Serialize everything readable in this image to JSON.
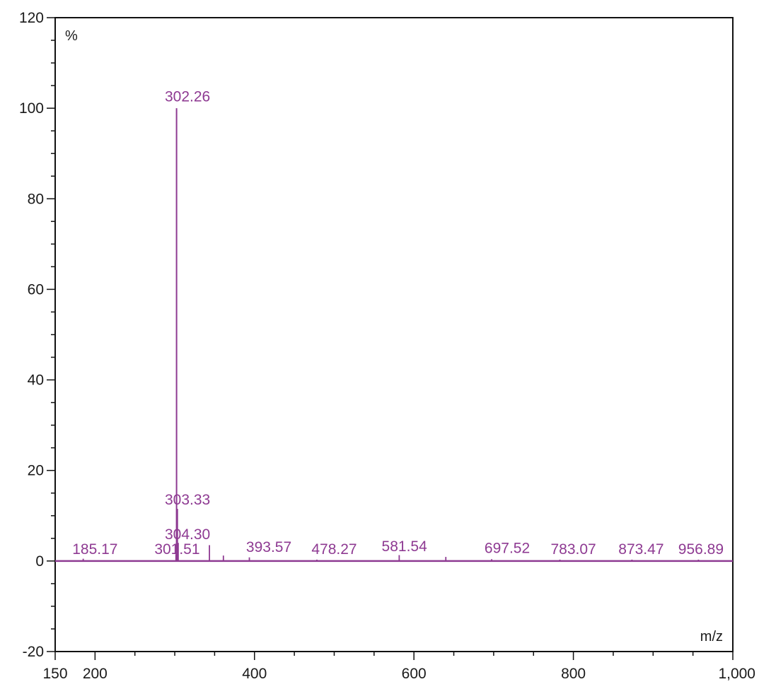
{
  "chart_data": {
    "type": "bar",
    "title": "",
    "xlabel": "m/z",
    "ylabel": "%",
    "xlim": [
      150,
      1000
    ],
    "ylim": [
      -20,
      120
    ],
    "grid": false,
    "x_ticks": [
      {
        "value": 150,
        "label": "150"
      },
      {
        "value": 200,
        "label": "200"
      },
      {
        "value": 400,
        "label": "400"
      },
      {
        "value": 600,
        "label": "600"
      },
      {
        "value": 800,
        "label": "800"
      },
      {
        "value": 1000,
        "label": "1,000"
      }
    ],
    "y_ticks": [
      {
        "value": -20,
        "label": "-20"
      },
      {
        "value": 0,
        "label": "0"
      },
      {
        "value": 20,
        "label": "20"
      },
      {
        "value": 40,
        "label": "40"
      },
      {
        "value": 60,
        "label": "60"
      },
      {
        "value": 80,
        "label": "80"
      },
      {
        "value": 100,
        "label": "100"
      },
      {
        "value": 120,
        "label": "120"
      }
    ],
    "peaks": [
      {
        "mz": 185.17,
        "intensity": 0.5,
        "label": "185.17"
      },
      {
        "mz": 301.51,
        "intensity": 1.5,
        "label": "301.51"
      },
      {
        "mz": 302.26,
        "intensity": 100,
        "label": "302.26"
      },
      {
        "mz": 303.33,
        "intensity": 11.5,
        "label": "303.33"
      },
      {
        "mz": 304.3,
        "intensity": 4,
        "label": "304.30"
      },
      {
        "mz": 343.5,
        "intensity": 3.5,
        "label": ""
      },
      {
        "mz": 361.0,
        "intensity": 1.2,
        "label": ""
      },
      {
        "mz": 393.57,
        "intensity": 0.8,
        "label": "393.57"
      },
      {
        "mz": 478.27,
        "intensity": 0.3,
        "label": "478.27"
      },
      {
        "mz": 581.54,
        "intensity": 1.3,
        "label": "581.54"
      },
      {
        "mz": 640.0,
        "intensity": 0.9,
        "label": ""
      },
      {
        "mz": 697.52,
        "intensity": 0.4,
        "label": "697.52"
      },
      {
        "mz": 783.07,
        "intensity": 0.3,
        "label": "783.07"
      },
      {
        "mz": 873.47,
        "intensity": 0.3,
        "label": "873.47"
      },
      {
        "mz": 956.89,
        "intensity": 0.3,
        "label": "956.89"
      }
    ],
    "colors": {
      "trace": "#8e3a92",
      "label": "#8e3a92",
      "axis": "#111111"
    }
  }
}
